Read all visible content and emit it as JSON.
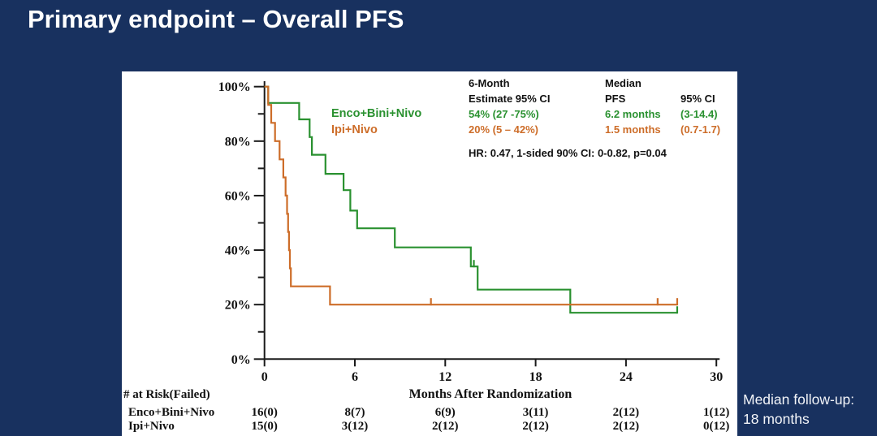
{
  "title": "Primary endpoint – Overall PFS",
  "colors": {
    "background": "#18315f",
    "panel": "#ffffff",
    "green": "#2a9130",
    "orange": "#cd6d29",
    "axis": "#1a1a1a"
  },
  "legend": {
    "arm1": "Enco+Bini+Nivo",
    "arm2": "Ipi+Nivo"
  },
  "stats": {
    "col1_header_line1": "6-Month",
    "col1_header_line2": "Estimate 95% CI",
    "col2_header_line1": "Median",
    "col2_header_line2": "PFS",
    "col3_header_line2": "95% CI",
    "arm1_estimate": "54% (27 -75%)",
    "arm2_estimate": "20% (5 – 42%)",
    "arm1_median": "6.2 months",
    "arm2_median": "1.5 months",
    "arm1_ci": "(3-14.4)",
    "arm2_ci": "(0.7-1.7)",
    "hr_line": "HR: 0.47, 1-sided 90% CI: 0-0.82, p=0.04"
  },
  "followup": {
    "line1": "Median follow-up:",
    "line2": "18 months"
  },
  "chart_data": {
    "type": "line",
    "subtype": "kaplan-meier-step",
    "title": "",
    "xlabel": "Months After Randomization",
    "ylabel": "",
    "xlim": [
      0,
      30
    ],
    "ylim": [
      0,
      100
    ],
    "x_ticks": [
      0,
      6,
      12,
      18,
      24,
      30
    ],
    "y_ticks_major": [
      0,
      20,
      40,
      60,
      80,
      100
    ],
    "y_tick_labels": [
      "0%",
      "20%",
      "40%",
      "60%",
      "80%",
      "100%"
    ],
    "y_ticks_minor": [
      10,
      30,
      50,
      70,
      90
    ],
    "grid": false,
    "legend_position": "inside-top-left",
    "series": [
      {
        "name": "Enco+Bini+Nivo",
        "color_key": "green",
        "steps": [
          [
            0,
            100
          ],
          [
            0.25,
            94
          ],
          [
            2.3,
            88
          ],
          [
            3.0,
            81.5
          ],
          [
            3.15,
            75
          ],
          [
            4.05,
            68
          ],
          [
            5.25,
            62
          ],
          [
            5.7,
            54.5
          ],
          [
            6.15,
            48
          ],
          [
            8.65,
            41
          ],
          [
            13.7,
            34
          ],
          [
            14.15,
            25.5
          ],
          [
            20.3,
            17
          ]
        ],
        "end_time": 27.4,
        "censor_marks": [
          [
            13.9,
            34
          ],
          [
            27.4,
            17
          ]
        ]
      },
      {
        "name": "Ipi+Nivo",
        "color_key": "orange",
        "steps": [
          [
            0,
            100
          ],
          [
            0.25,
            93.3
          ],
          [
            0.45,
            86.7
          ],
          [
            0.7,
            80
          ],
          [
            1.0,
            73.3
          ],
          [
            1.25,
            66.7
          ],
          [
            1.4,
            60
          ],
          [
            1.5,
            53.3
          ],
          [
            1.57,
            46.7
          ],
          [
            1.63,
            40
          ],
          [
            1.69,
            33.3
          ],
          [
            1.75,
            26.7
          ],
          [
            4.35,
            20
          ]
        ],
        "end_time": 27.4,
        "censor_marks": [
          [
            11.05,
            20
          ],
          [
            26.1,
            20
          ],
          [
            27.4,
            20
          ]
        ]
      }
    ]
  },
  "risk_table": {
    "header": "# at Risk(Failed)",
    "times": [
      0,
      6,
      12,
      18,
      24,
      30
    ],
    "rows": [
      {
        "label": "Enco+Bini+Nivo",
        "color_key": "green",
        "values": [
          "16(0)",
          "8(7)",
          "6(9)",
          "3(11)",
          "2(12)",
          "1(12)"
        ]
      },
      {
        "label": "Ipi+Nivo",
        "color_key": "orange",
        "values": [
          "15(0)",
          "3(12)",
          "2(12)",
          "2(12)",
          "2(12)",
          "0(12)"
        ]
      }
    ]
  }
}
